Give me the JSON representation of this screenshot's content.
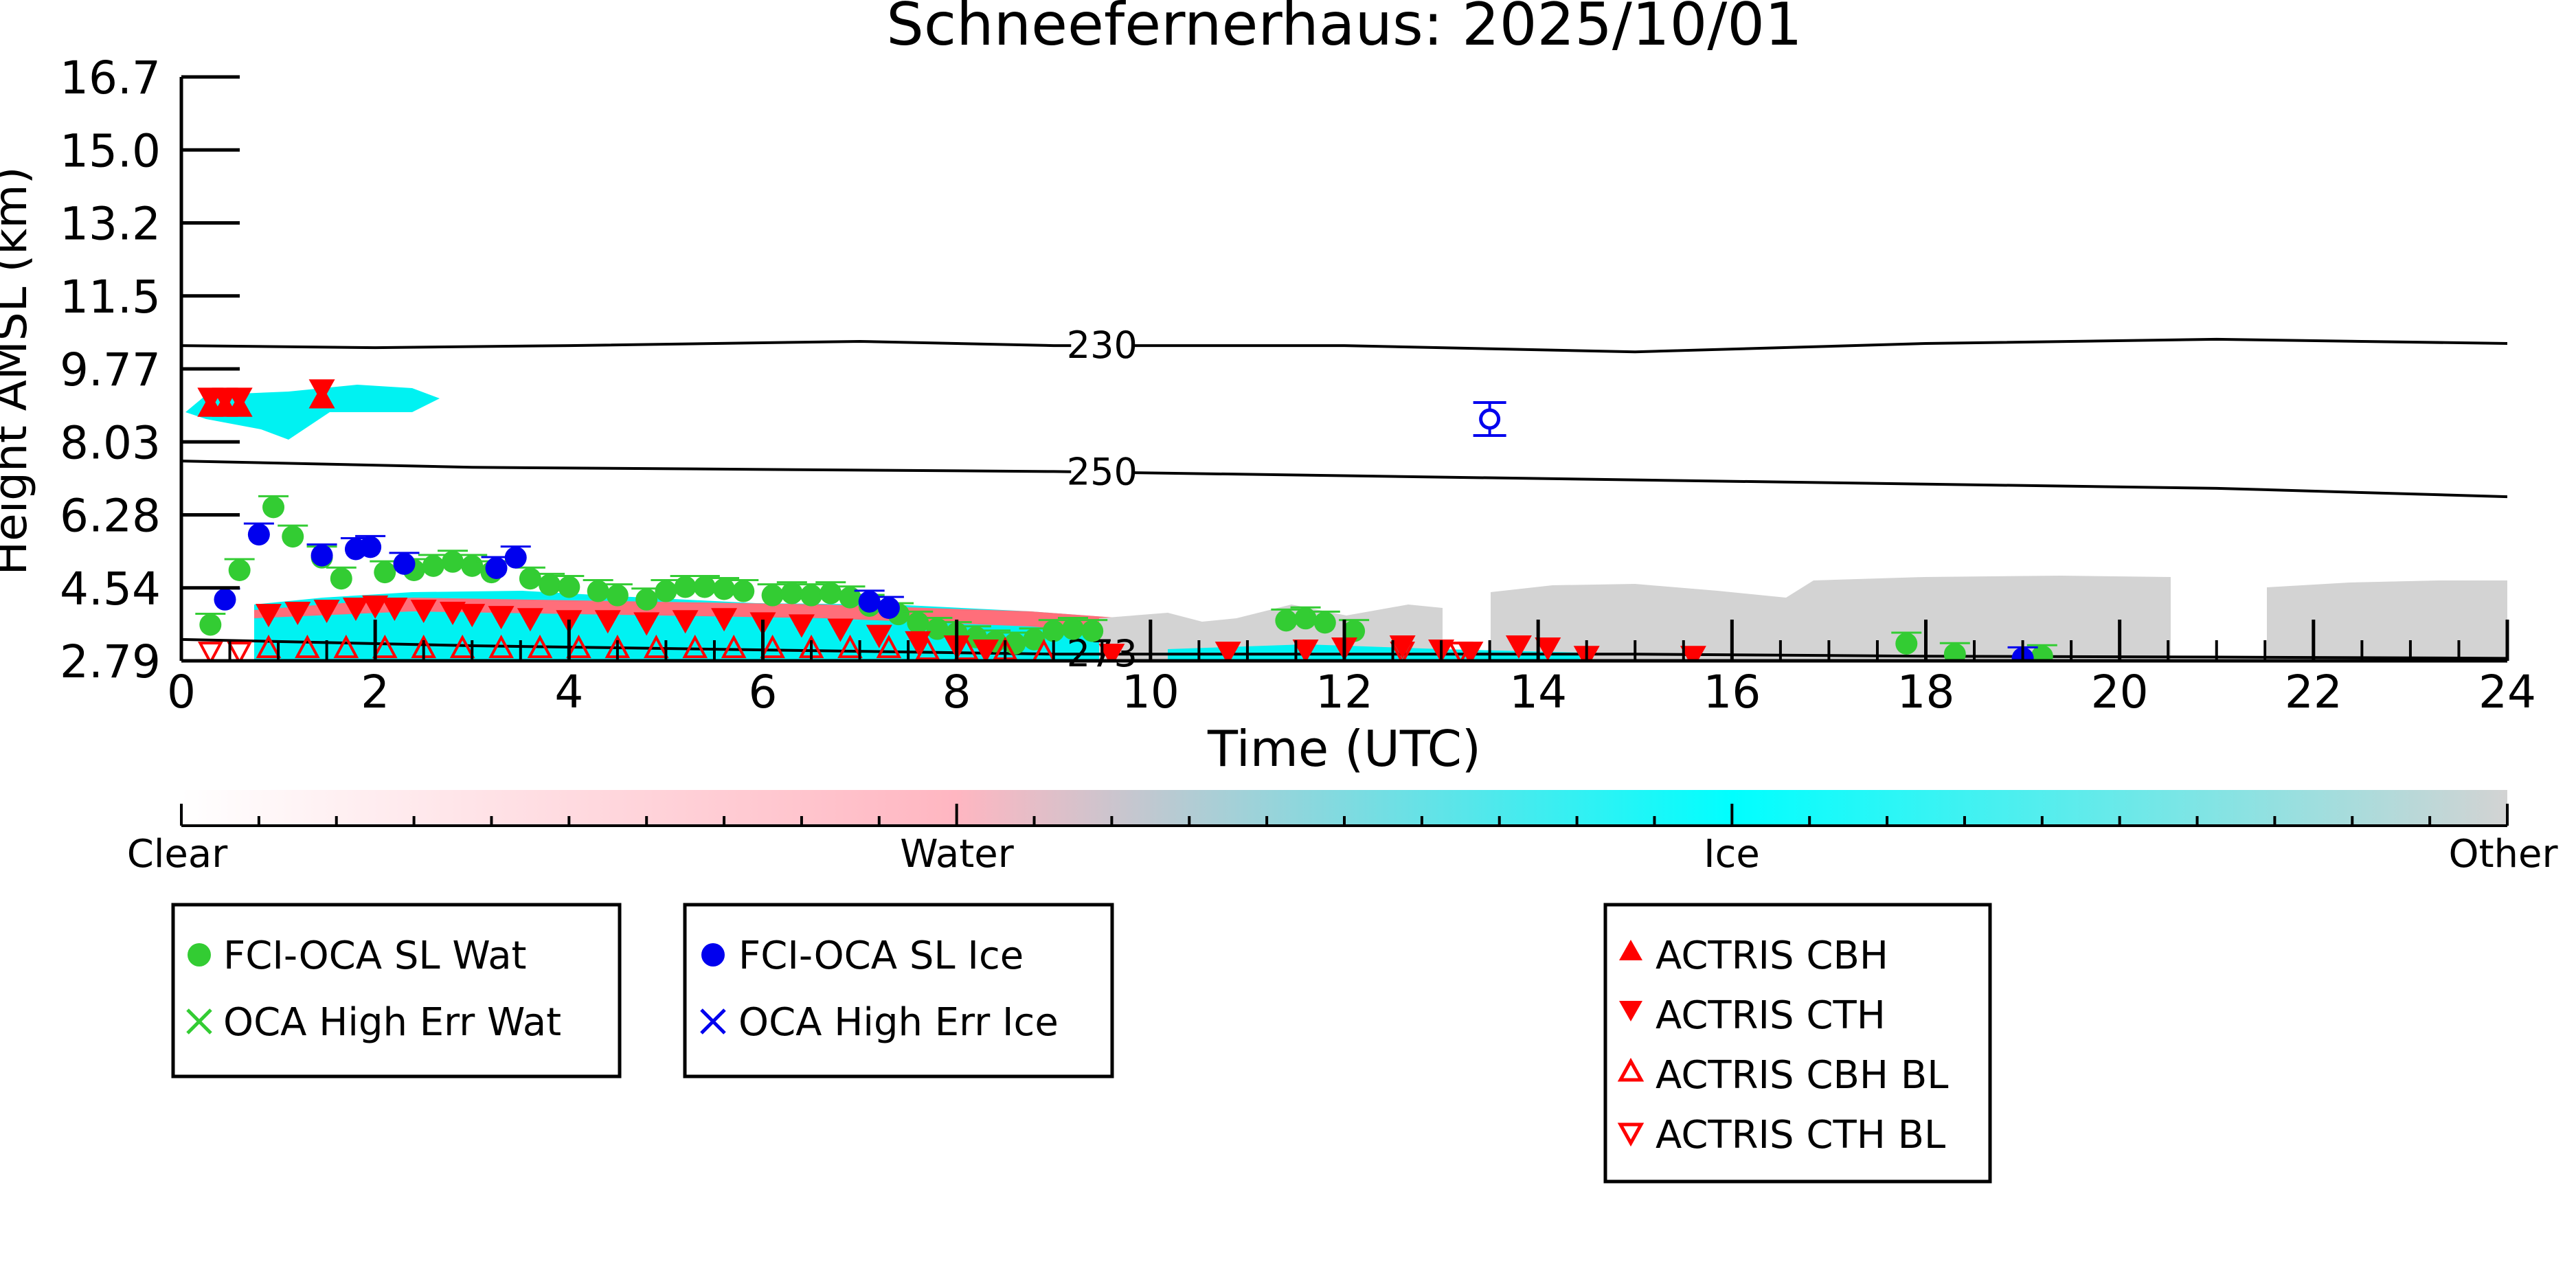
{
  "chart_data": {
    "type": "scatter",
    "title": "Schneefernerhaus: 2025/10/01",
    "xlabel": "Time (UTC)",
    "ylabel": "Height AMSL (km)",
    "xlim": [
      0,
      24
    ],
    "ylim": [
      2.79,
      16.7
    ],
    "x_ticks": [
      "0",
      "2",
      "4",
      "6",
      "8",
      "10",
      "12",
      "14",
      "16",
      "18",
      "20",
      "22",
      "24"
    ],
    "y_ticks": [
      "2.79",
      "4.54",
      "6.28",
      "8.03",
      "9.77",
      "11.5",
      "13.2",
      "15.0",
      "16.7"
    ],
    "colorbar": {
      "labels": [
        "Clear",
        "Water",
        "Ice",
        "Other"
      ],
      "colors": [
        "#ffffff",
        "#ffb6c1",
        "#00ffff",
        "#d3d3d3"
      ]
    },
    "isotherms": [
      {
        "label": "230",
        "x": [
          0,
          2,
          4,
          7,
          9,
          12,
          15,
          18,
          21,
          24
        ],
        "y": [
          10.3,
          10.25,
          10.3,
          10.4,
          10.3,
          10.3,
          10.15,
          10.35,
          10.45,
          10.35
        ]
      },
      {
        "label": "250",
        "x": [
          0,
          3,
          6,
          9,
          12,
          15,
          18,
          21,
          24
        ],
        "y": [
          7.55,
          7.4,
          7.35,
          7.3,
          7.2,
          7.1,
          7.0,
          6.9,
          6.7
        ]
      },
      {
        "label": "273",
        "x": [
          0,
          3,
          6,
          9,
          12,
          15,
          18,
          21,
          24
        ],
        "y": [
          3.3,
          3.15,
          3.05,
          2.95,
          2.95,
          2.95,
          2.9,
          2.88,
          2.85
        ]
      }
    ],
    "series": [
      {
        "name": "FCI-OCA SL Wat",
        "color": "#33cc33",
        "marker": "circle",
        "x": [
          0.3,
          0.6,
          0.95,
          1.15,
          1.45,
          1.65,
          2.1,
          2.4,
          2.6,
          2.8,
          3.0,
          3.2,
          3.6,
          3.8,
          4.0,
          4.3,
          4.5,
          4.8,
          5.0,
          5.2,
          5.4,
          5.6,
          5.8,
          6.1,
          6.3,
          6.5,
          6.7,
          6.9,
          7.1,
          7.4,
          7.6,
          7.8,
          8.0,
          8.2,
          8.4,
          8.6,
          8.8,
          9.0,
          9.2,
          9.4,
          11.4,
          11.6,
          11.8,
          12.1,
          17.8,
          18.3,
          19.2
        ],
        "y": [
          3.65,
          4.95,
          6.45,
          5.75,
          5.25,
          4.75,
          4.9,
          4.95,
          5.05,
          5.15,
          5.05,
          4.9,
          4.75,
          4.6,
          4.55,
          4.45,
          4.35,
          4.25,
          4.45,
          4.55,
          4.55,
          4.5,
          4.45,
          4.35,
          4.4,
          4.35,
          4.4,
          4.3,
          4.1,
          3.9,
          3.7,
          3.55,
          3.45,
          3.35,
          3.25,
          3.2,
          3.3,
          3.5,
          3.55,
          3.5,
          3.75,
          3.8,
          3.7,
          3.5,
          3.2,
          2.95,
          2.9
        ]
      },
      {
        "name": "OCA High Err Wat",
        "color": "#33cc33",
        "marker": "x",
        "x": [],
        "y": []
      },
      {
        "name": "FCI-OCA SL Ice",
        "color": "#0000ee",
        "marker": "circle",
        "x": [
          0.45,
          0.8,
          1.45,
          1.8,
          1.95,
          2.3,
          3.25,
          3.45,
          7.1,
          7.3,
          13.5,
          19.0
        ],
        "y": [
          4.25,
          5.8,
          5.3,
          5.45,
          5.5,
          5.1,
          5.0,
          5.25,
          4.2,
          4.05,
          8.55,
          2.85
        ]
      },
      {
        "name": "OCA High Err Ice",
        "color": "#0000ee",
        "marker": "x",
        "x": [],
        "y": []
      },
      {
        "name": "ACTRIS CBH",
        "color": "#ff0000",
        "marker": "triangle-up",
        "x": [
          0.3,
          0.45,
          0.6,
          1.45
        ],
        "y": [
          8.8,
          8.8,
          8.8,
          9.0
        ]
      },
      {
        "name": "ACTRIS CTH",
        "color": "#ff0000",
        "marker": "triangle-down",
        "x": [
          0.3,
          0.45,
          0.6,
          1.45,
          0.9,
          1.2,
          1.5,
          1.8,
          2.0,
          2.2,
          2.5,
          2.8,
          3.0,
          3.3,
          3.6,
          4.0,
          4.4,
          4.8,
          5.2,
          5.6,
          6.0,
          6.4,
          6.8,
          7.2,
          7.6,
          8.0,
          8.3,
          9.6,
          10.8,
          11.6,
          12.0,
          12.6,
          13.0,
          13.3,
          13.8,
          14.1,
          14.5,
          15.6
        ],
        "y": [
          9.1,
          9.1,
          9.1,
          9.3,
          3.95,
          4.0,
          4.05,
          4.1,
          4.15,
          4.1,
          4.05,
          4.0,
          3.95,
          3.9,
          3.85,
          3.8,
          3.8,
          3.75,
          3.8,
          3.85,
          3.75,
          3.7,
          3.6,
          3.45,
          3.3,
          3.2,
          3.1,
          3.0,
          3.05,
          3.1,
          3.15,
          3.2,
          3.1,
          3.05,
          3.2,
          3.15,
          2.95,
          2.95
        ]
      },
      {
        "name": "ACTRIS CBH BL",
        "color": "#ff0000",
        "marker": "triangle-up-open",
        "x": [
          0.9,
          1.3,
          1.7,
          2.1,
          2.5,
          2.9,
          3.3,
          3.7,
          4.1,
          4.5,
          4.9,
          5.3,
          5.7,
          6.1,
          6.5,
          6.9,
          7.3,
          7.7,
          8.1,
          8.5,
          8.9
        ],
        "y": [
          3.05,
          3.05,
          3.05,
          3.05,
          3.05,
          3.05,
          3.05,
          3.05,
          3.05,
          3.05,
          3.05,
          3.05,
          3.05,
          3.05,
          3.05,
          3.05,
          3.05,
          3.0,
          3.0,
          3.0,
          2.95
        ]
      },
      {
        "name": "ACTRIS CTH BL",
        "color": "#ff0000",
        "marker": "triangle-down-open",
        "x": [
          0.3,
          0.6,
          12.6,
          13.2
        ],
        "y": [
          3.05,
          3.05,
          3.05,
          3.05
        ]
      }
    ]
  }
}
